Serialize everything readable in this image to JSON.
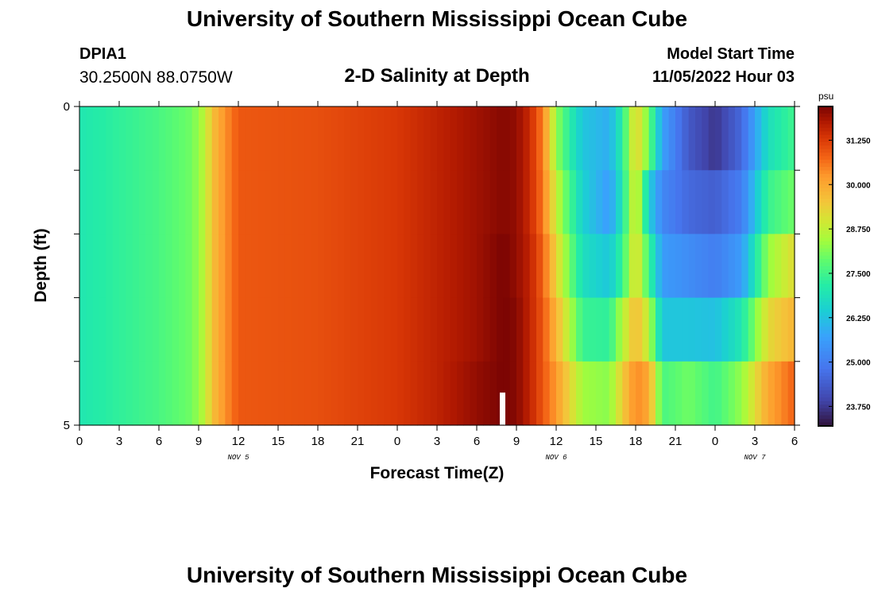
{
  "header": {
    "title": "University of Southern Mississippi Ocean Cube",
    "station": "DPIA1",
    "coords": "30.2500N  88.0750W",
    "subtitle": "2-D Salinity at Depth",
    "model_start_label": "Model Start Time",
    "model_start_value": "11/05/2022 Hour 03"
  },
  "footer": {
    "title": "University of Southern Mississippi Ocean Cube"
  },
  "chart_data": {
    "type": "heatmap",
    "title": "2-D Salinity at Depth",
    "xlabel": "Forecast Time(Z)",
    "ylabel": "Depth (ft)",
    "x_start_hour": 0,
    "x_end_hour": 54,
    "x_tick_labels": [
      "0",
      "3",
      "6",
      "9",
      "12",
      "15",
      "18",
      "21",
      "0",
      "3",
      "6",
      "9",
      "12",
      "15",
      "18",
      "21",
      "0",
      "3",
      "6"
    ],
    "date_labels": [
      {
        "label": "NOV 5",
        "hour": 12
      },
      {
        "label": "NOV 6",
        "hour": 36
      },
      {
        "label": "NOV 7",
        "hour": 51
      }
    ],
    "y_tick_labels": [
      "0",
      "5"
    ],
    "ylim": [
      5,
      0
    ],
    "depth_levels": [
      0,
      1,
      2,
      3,
      4,
      5
    ],
    "colorbar": {
      "unit": "psu",
      "min": 23.2,
      "max": 32.2,
      "tick_labels": [
        "31.250",
        "30.000",
        "28.750",
        "27.500",
        "26.250",
        "25.000",
        "23.750"
      ],
      "tick_values": [
        31.25,
        30.0,
        28.75,
        27.5,
        26.25,
        25.0,
        23.75
      ]
    },
    "columns": [
      {
        "hour": 0,
        "values": [
          27.0,
          27.0,
          27.0,
          27.0,
          27.0
        ]
      },
      {
        "hour": 3,
        "values": [
          27.3,
          27.3,
          27.3,
          27.3,
          27.3
        ]
      },
      {
        "hour": 6,
        "values": [
          27.6,
          27.6,
          27.6,
          27.6,
          27.6
        ]
      },
      {
        "hour": 8.5,
        "values": [
          28.0,
          28.0,
          28.0,
          28.0,
          28.0
        ]
      },
      {
        "hour": 9.5,
        "values": [
          28.7,
          28.7,
          28.7,
          28.7,
          28.7
        ]
      },
      {
        "hour": 10,
        "values": [
          29.6,
          29.6,
          29.6,
          29.6,
          29.6
        ]
      },
      {
        "hour": 11,
        "values": [
          30.3,
          30.3,
          30.3,
          30.3,
          30.3
        ]
      },
      {
        "hour": 12,
        "values": [
          30.9,
          30.9,
          30.9,
          30.9,
          30.9
        ]
      },
      {
        "hour": 18,
        "values": [
          31.0,
          31.0,
          31.0,
          31.0,
          31.0
        ]
      },
      {
        "hour": 24,
        "values": [
          31.3,
          31.3,
          31.3,
          31.3,
          31.3
        ]
      },
      {
        "hour": 27,
        "values": [
          31.6,
          31.6,
          31.6,
          31.6,
          31.6
        ]
      },
      {
        "hour": 30,
        "values": [
          31.9,
          31.9,
          31.9,
          31.9,
          32.0
        ]
      },
      {
        "hour": 32,
        "values": [
          32.1,
          32.1,
          32.2,
          32.2,
          32.2
        ]
      },
      {
        "hour": 33,
        "values": [
          32.0,
          32.0,
          32.0,
          32.1,
          32.1
        ]
      },
      {
        "hour": 34,
        "values": [
          31.5,
          31.5,
          31.6,
          31.6,
          31.6
        ]
      },
      {
        "hour": 35,
        "values": [
          30.5,
          30.6,
          30.8,
          30.9,
          30.9
        ]
      },
      {
        "hour": 36,
        "values": [
          28.3,
          28.8,
          29.3,
          29.8,
          30.2
        ]
      },
      {
        "hour": 37,
        "values": [
          27.2,
          27.6,
          28.0,
          28.6,
          29.3
        ]
      },
      {
        "hour": 38,
        "values": [
          26.3,
          26.5,
          26.8,
          27.4,
          28.4
        ]
      },
      {
        "hour": 40,
        "values": [
          25.9,
          25.6,
          26.3,
          27.3,
          28.2
        ]
      },
      {
        "hour": 41,
        "values": [
          27.2,
          27.0,
          27.4,
          28.6,
          29.4
        ]
      },
      {
        "hour": 42,
        "values": [
          29.4,
          29.2,
          29.3,
          29.7,
          30.4
        ]
      },
      {
        "hour": 43,
        "values": [
          28.0,
          26.5,
          27.5,
          28.7,
          30.0
        ]
      },
      {
        "hour": 44,
        "values": [
          25.7,
          25.2,
          25.6,
          26.3,
          27.6
        ]
      },
      {
        "hour": 46,
        "values": [
          24.3,
          24.6,
          25.3,
          26.3,
          28.0
        ]
      },
      {
        "hour": 48,
        "values": [
          23.7,
          24.4,
          25.0,
          26.2,
          27.5
        ]
      },
      {
        "hour": 50,
        "values": [
          24.6,
          25.0,
          25.6,
          27.0,
          28.3
        ]
      },
      {
        "hour": 52,
        "values": [
          26.8,
          27.4,
          28.3,
          29.2,
          30.0
        ]
      },
      {
        "hour": 54,
        "values": [
          27.5,
          28.0,
          29.2,
          29.8,
          30.8
        ]
      }
    ]
  }
}
